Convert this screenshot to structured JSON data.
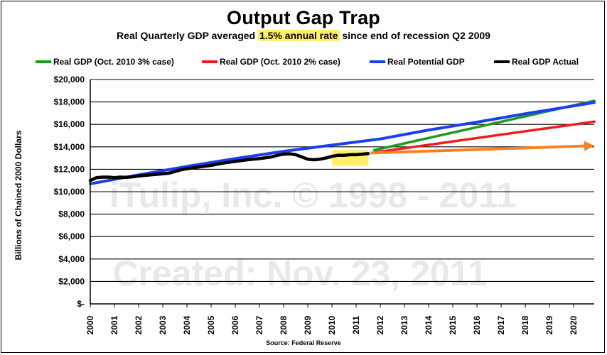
{
  "header": {
    "title": "Output Gap Trap",
    "subtitle_pre": "Real Quarterly GDP averaged ",
    "subtitle_highlight": "1.5% annual rate",
    "subtitle_post": " since end of recession Q2 2009",
    "source": "Source: Federal Reserve"
  },
  "watermarks": [
    "iTulip, Inc. © 1998 - 2011",
    "Created: Nov. 23, 2011"
  ],
  "colors": {
    "green": "#1e9a1e",
    "red": "#ee1c1c",
    "blue": "#1a3ef0",
    "black": "#000000",
    "orange": "#f58220",
    "highlight": "#fff066"
  },
  "chart_data": {
    "type": "line",
    "ylabel": "Billions of Chained 2000 Dollars",
    "xlabel": "",
    "ylim": [
      0,
      20000
    ],
    "xlim": [
      2000,
      2020.85
    ],
    "y_ticks": [
      {
        "value": 0,
        "label": "$-"
      },
      {
        "value": 2000,
        "label": "$2,000"
      },
      {
        "value": 4000,
        "label": "$4,000"
      },
      {
        "value": 6000,
        "label": "$6,000"
      },
      {
        "value": 8000,
        "label": "$8,000"
      },
      {
        "value": 10000,
        "label": "$10,000"
      },
      {
        "value": 12000,
        "label": "$12,000"
      },
      {
        "value": 14000,
        "label": "$14,000"
      },
      {
        "value": 16000,
        "label": "$16,000"
      },
      {
        "value": 18000,
        "label": "$18,000"
      },
      {
        "value": 20000,
        "label": "$20,000"
      }
    ],
    "x_ticks": [
      "2000",
      "2001",
      "2002",
      "2003",
      "2004",
      "2005",
      "2006",
      "2007",
      "2008",
      "2009",
      "2010",
      "2011",
      "2012",
      "2013",
      "2014",
      "2015",
      "2016",
      "2017",
      "2018",
      "2019",
      "2020"
    ],
    "grid": "horizontal",
    "legend_position": "top",
    "series": [
      {
        "name": "Real GDP (Oct. 2010 3% case)",
        "color_key": "green",
        "points": [
          [
            2011.75,
            13700
          ],
          [
            2020.85,
            18100
          ]
        ]
      },
      {
        "name": "Real GDP (Oct. 2010 2% case)",
        "color_key": "red",
        "points": [
          [
            2011.75,
            13500
          ],
          [
            2020.85,
            16250
          ]
        ]
      },
      {
        "name": "Real Potential GDP",
        "color_key": "blue",
        "points": [
          [
            2000,
            10700
          ],
          [
            2002,
            11500
          ],
          [
            2004,
            12250
          ],
          [
            2006,
            12950
          ],
          [
            2008,
            13600
          ],
          [
            2010,
            14150
          ],
          [
            2012,
            14700
          ],
          [
            2014,
            15500
          ],
          [
            2016,
            16200
          ],
          [
            2018,
            16950
          ],
          [
            2020.85,
            17950
          ]
        ]
      },
      {
        "name": "Real GDP Actual",
        "color_key": "black",
        "points": [
          [
            2000,
            11000
          ],
          [
            2000.25,
            11250
          ],
          [
            2000.5,
            11300
          ],
          [
            2000.75,
            11300
          ],
          [
            2001,
            11250
          ],
          [
            2001.25,
            11300
          ],
          [
            2001.5,
            11280
          ],
          [
            2001.75,
            11330
          ],
          [
            2002,
            11400
          ],
          [
            2002.5,
            11500
          ],
          [
            2003,
            11600
          ],
          [
            2003.25,
            11650
          ],
          [
            2003.5,
            11800
          ],
          [
            2003.75,
            11950
          ],
          [
            2004,
            12050
          ],
          [
            2004.5,
            12200
          ],
          [
            2005,
            12350
          ],
          [
            2005.5,
            12550
          ],
          [
            2006,
            12700
          ],
          [
            2006.5,
            12850
          ],
          [
            2007,
            12950
          ],
          [
            2007.5,
            13100
          ],
          [
            2007.75,
            13250
          ],
          [
            2008,
            13350
          ],
          [
            2008.25,
            13380
          ],
          [
            2008.5,
            13300
          ],
          [
            2008.75,
            13100
          ],
          [
            2009,
            12900
          ],
          [
            2009.25,
            12850
          ],
          [
            2009.5,
            12900
          ],
          [
            2009.75,
            13000
          ],
          [
            2010,
            13150
          ],
          [
            2010.25,
            13250
          ],
          [
            2010.5,
            13250
          ],
          [
            2010.75,
            13300
          ],
          [
            2011,
            13300
          ],
          [
            2011.25,
            13350
          ],
          [
            2011.5,
            13400
          ]
        ]
      }
    ],
    "arrows": [
      {
        "color_key": "orange",
        "from": [
          2011.6,
          13450
        ],
        "to": [
          2020.85,
          14100
        ]
      }
    ],
    "highlight_box": {
      "x": [
        2010,
        2011.5
      ],
      "y": [
        12300,
        13700
      ],
      "color_key": "highlight"
    }
  }
}
